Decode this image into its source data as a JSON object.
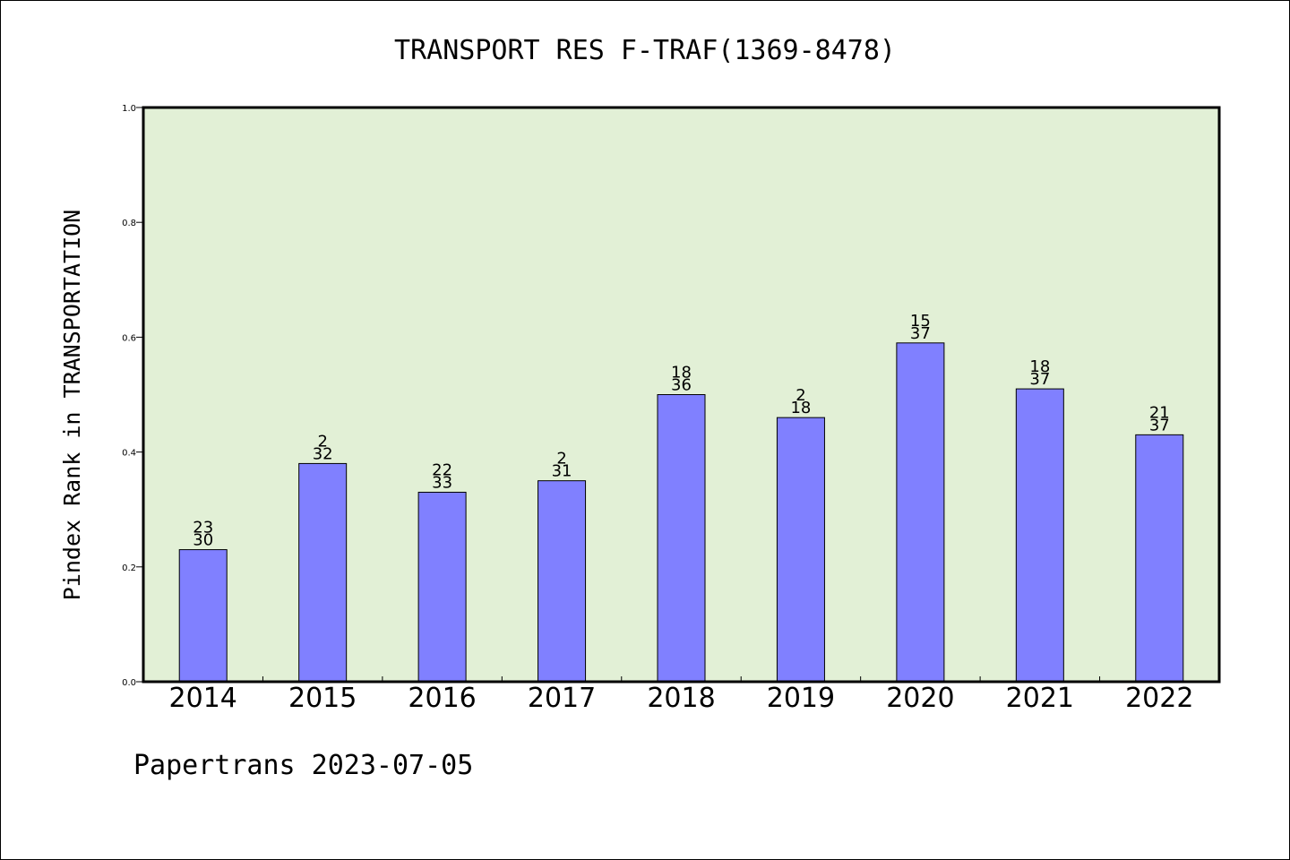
{
  "chart_data": {
    "type": "bar",
    "title": "TRANSPORT RES F-TRAF(1369-8478)",
    "xlabel": "",
    "ylabel": "Pindex Rank in TRANSPORTATION",
    "ylim": [
      0,
      1.0
    ],
    "yticks": [
      "0.0",
      "0.2",
      "0.4",
      "0.6",
      "0.8",
      "1.0"
    ],
    "categories": [
      "2014",
      "2015",
      "2016",
      "2017",
      "2018",
      "2019",
      "2020",
      "2021",
      "2022"
    ],
    "values": [
      0.23,
      0.38,
      0.33,
      0.35,
      0.5,
      0.46,
      0.59,
      0.51,
      0.43
    ],
    "labels_top": [
      "23",
      "2",
      "22",
      "2",
      "18",
      "2",
      "15",
      "18",
      "21"
    ],
    "labels_bottom": [
      "30",
      "32",
      "33",
      "31",
      "36",
      "18",
      "37",
      "37",
      "37"
    ],
    "grid": false,
    "legend": "none",
    "colors": {
      "bar": "#8080ff",
      "plot_background": "#e2f0d6"
    }
  },
  "footer": "Papertrans 2023-07-05"
}
